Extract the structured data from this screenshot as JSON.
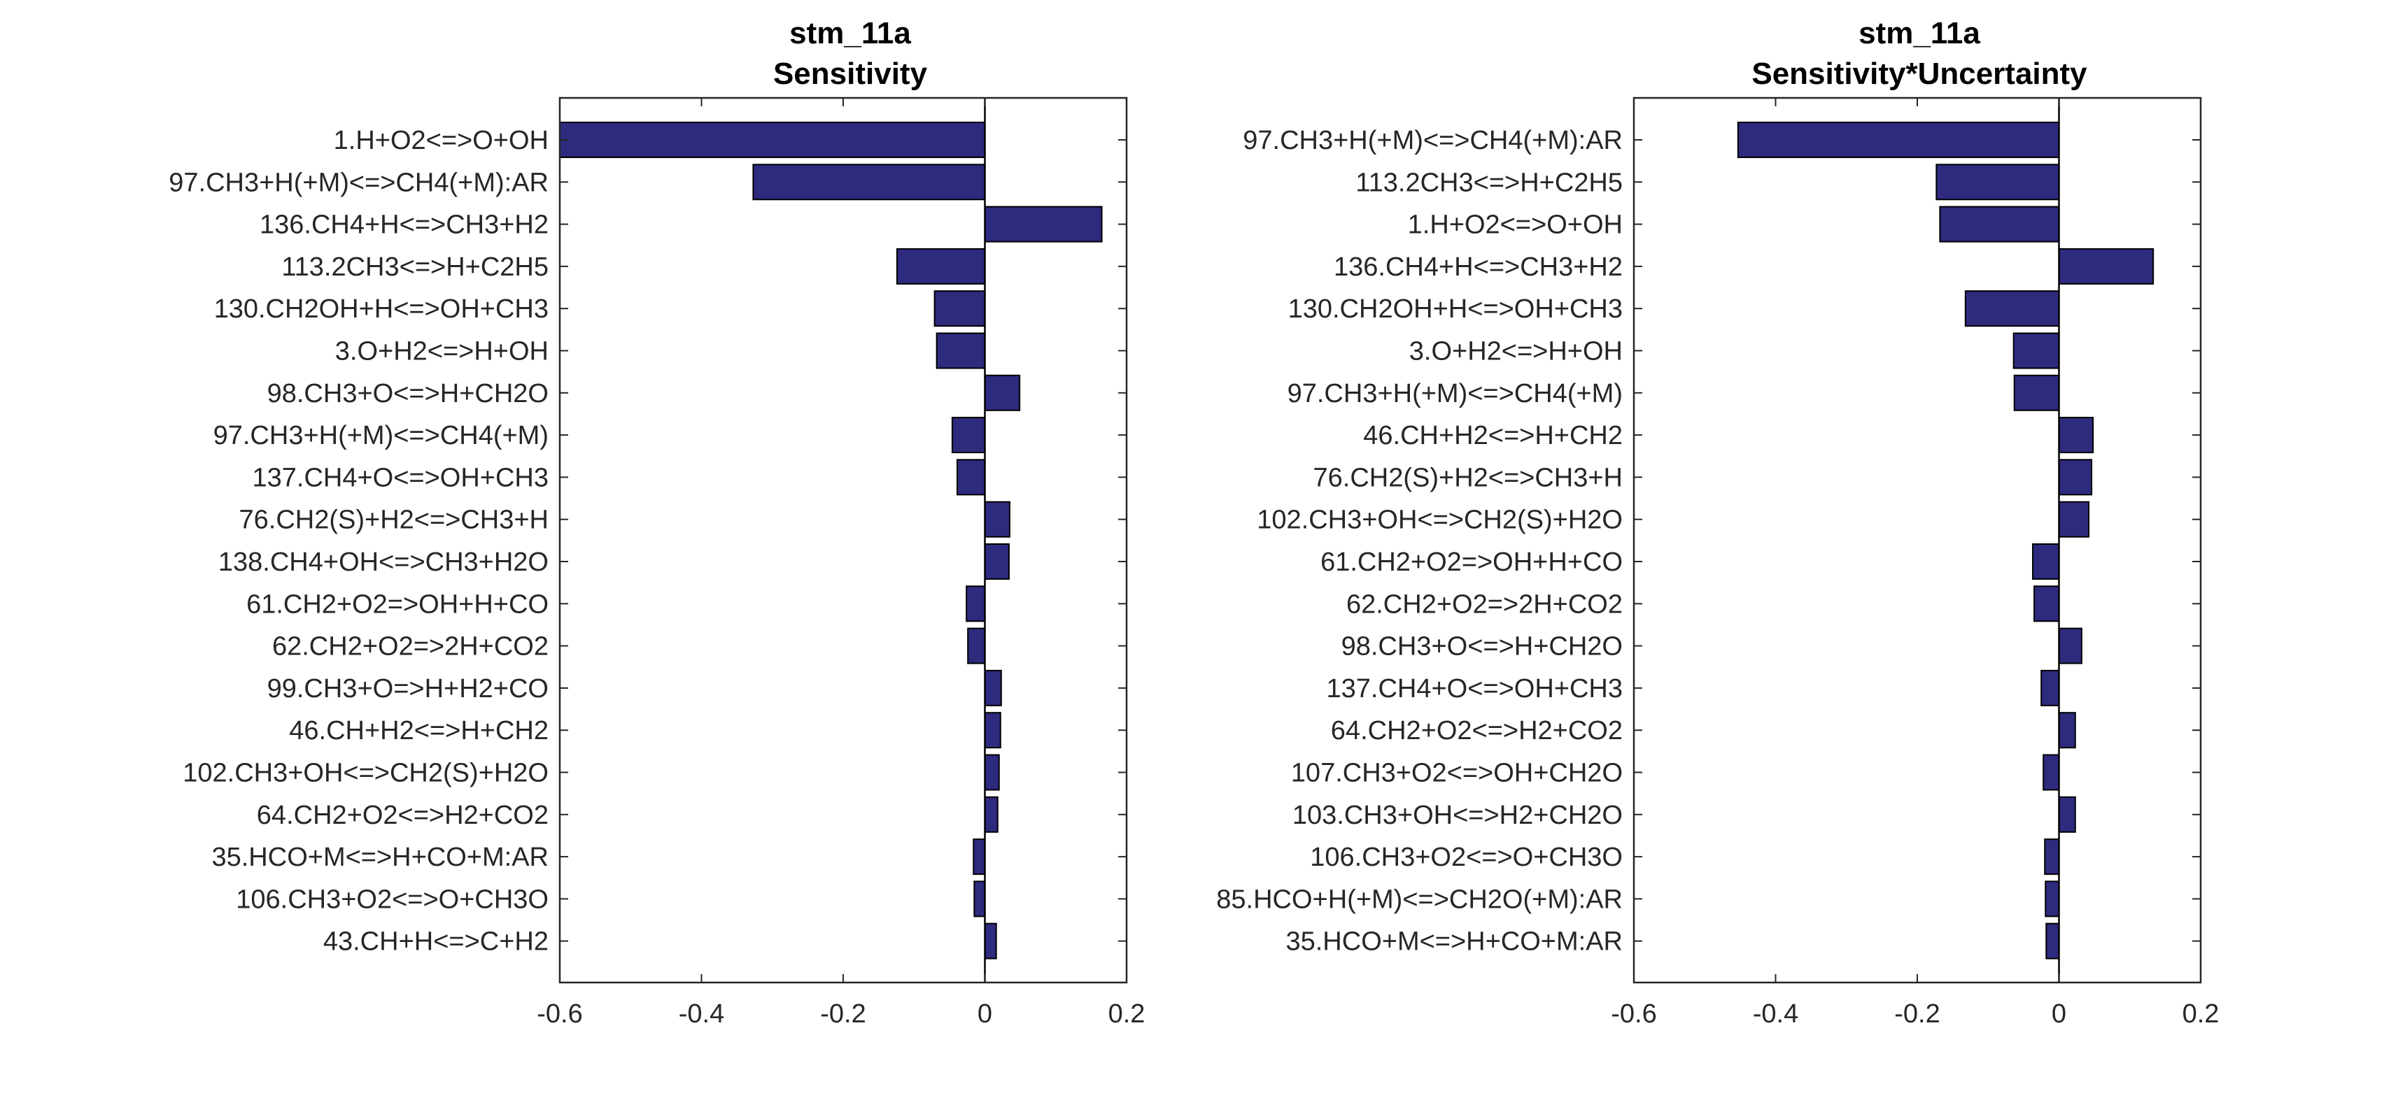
{
  "figure_title": "stm_11a",
  "colors": {
    "bar": "#2e2a7e",
    "bar_edge": "#000000",
    "axes": "#262626",
    "background": "#ffffff"
  },
  "chart_data": [
    {
      "type": "bar",
      "orientation": "horizontal",
      "title": "stm_11a",
      "subtitle": "Sensitivity",
      "xlim": [
        -0.6,
        0.2
      ],
      "xticks": [
        "-0.6",
        "-0.4",
        "-0.2",
        "0",
        "0.2"
      ],
      "xtick_values": [
        -0.6,
        -0.4,
        -0.2,
        0,
        0.2
      ],
      "categories": [
        "1.H+O2<=>O+OH",
        "97.CH3+H(+M)<=>CH4(+M):AR",
        "136.CH4+H<=>CH3+H2",
        "113.2CH3<=>H+C2H5",
        "130.CH2OH+H<=>OH+CH3",
        "3.O+H2<=>H+OH",
        "98.CH3+O<=>H+CH2O",
        "97.CH3+H(+M)<=>CH4(+M)",
        "137.CH4+O<=>OH+CH3",
        "76.CH2(S)+H2<=>CH3+H",
        "138.CH4+OH<=>CH3+H2O",
        "61.CH2+O2=>OH+H+CO",
        "62.CH2+O2=>2H+CO2",
        "99.CH3+O=>H+H2+CO",
        "46.CH+H2<=>H+CH2",
        "102.CH3+OH<=>CH2(S)+H2O",
        "64.CH2+O2<=>H2+CO2",
        "35.HCO+M<=>H+CO+M:AR",
        "106.CH3+O2<=>O+CH3O",
        "43.CH+H<=>C+H2"
      ],
      "values": [
        -0.6,
        -0.327,
        0.165,
        -0.124,
        -0.071,
        -0.068,
        0.049,
        -0.046,
        -0.039,
        0.035,
        0.034,
        -0.026,
        -0.024,
        0.023,
        0.022,
        0.02,
        0.018,
        -0.016,
        -0.015,
        0.016
      ]
    },
    {
      "type": "bar",
      "orientation": "horizontal",
      "title": "stm_11a",
      "subtitle": "Sensitivity*Uncertainty",
      "xlim": [
        -0.6,
        0.2
      ],
      "xticks": [
        "-0.6",
        "-0.4",
        "-0.2",
        "0",
        "0.2"
      ],
      "xtick_values": [
        -0.6,
        -0.4,
        -0.2,
        0,
        0.2
      ],
      "categories": [
        "97.CH3+H(+M)<=>CH4(+M):AR",
        "113.2CH3<=>H+C2H5",
        "1.H+O2<=>O+OH",
        "136.CH4+H<=>CH3+H2",
        "130.CH2OH+H<=>OH+CH3",
        "3.O+H2<=>H+OH",
        "97.CH3+H(+M)<=>CH4(+M)",
        "46.CH+H2<=>H+CH2",
        "76.CH2(S)+H2<=>CH3+H",
        "102.CH3+OH<=>CH2(S)+H2O",
        "61.CH2+O2=>OH+H+CO",
        "62.CH2+O2=>2H+CO2",
        "98.CH3+O<=>H+CH2O",
        "137.CH4+O<=>OH+CH3",
        "64.CH2+O2<=>H2+CO2",
        "107.CH3+O2<=>OH+CH2O",
        "103.CH3+OH<=>H2+CH2O",
        "106.CH3+O2<=>O+CH3O",
        "85.HCO+H(+M)<=>CH2O(+M):AR",
        "35.HCO+M<=>H+CO+M:AR"
      ],
      "values": [
        -0.453,
        -0.173,
        -0.168,
        0.133,
        -0.132,
        -0.064,
        -0.063,
        0.048,
        0.046,
        0.042,
        -0.037,
        -0.035,
        0.032,
        -0.025,
        0.023,
        -0.022,
        0.023,
        -0.02,
        -0.019,
        -0.018
      ]
    }
  ]
}
